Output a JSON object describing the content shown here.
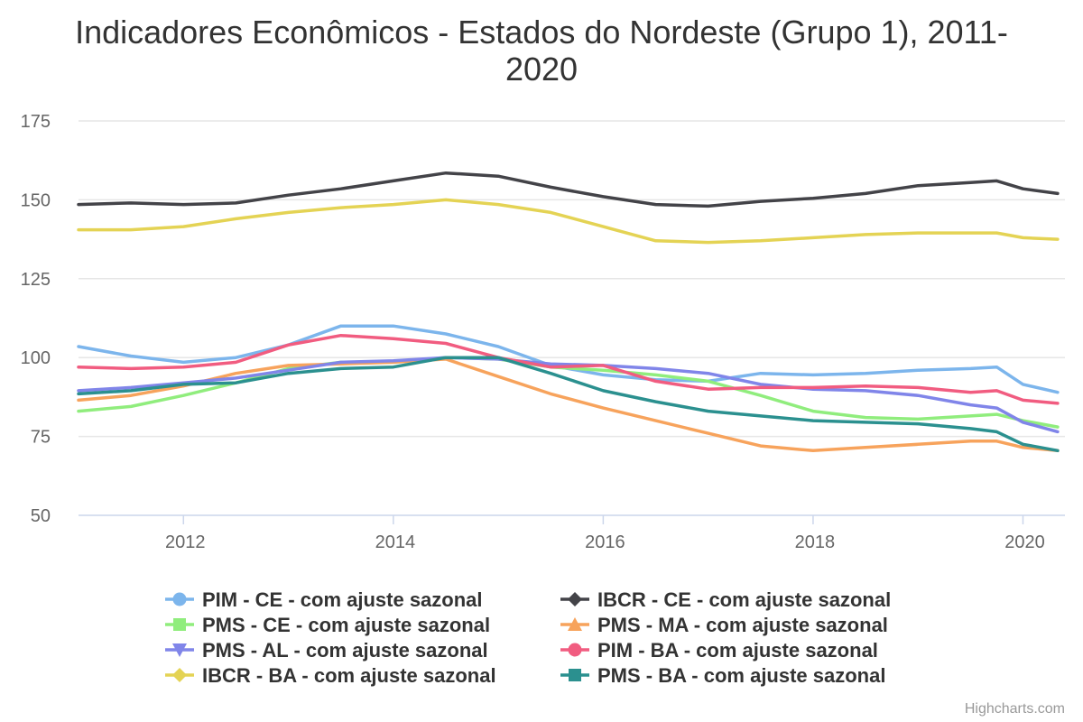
{
  "chart_data": {
    "type": "line",
    "title": "Indicadores Econômicos - Estados do Nordeste (Grupo 1), 2011-2020",
    "title_lines": [
      "Indicadores Econômicos - Estados do Nordeste (Grupo 1), 2011-",
      "2020"
    ],
    "xlabel": "",
    "ylabel": "",
    "x_ticks": [
      "2012",
      "2014",
      "2016",
      "2018",
      "2020"
    ],
    "x_tick_values": [
      2012,
      2014,
      2016,
      2018,
      2020
    ],
    "y_ticks": [
      "50",
      "75",
      "100",
      "125",
      "150",
      "175"
    ],
    "y_tick_values": [
      50,
      75,
      100,
      125,
      150,
      175
    ],
    "xlim": [
      2011,
      2020.4
    ],
    "ylim": [
      50,
      175
    ],
    "grid": "horizontal",
    "legend_position": "bottom",
    "credits": "Highcharts.com",
    "x": [
      2011,
      2011.5,
      2012,
      2012.5,
      2013,
      2013.5,
      2014,
      2014.5,
      2015,
      2015.5,
      2016,
      2016.5,
      2017,
      2017.5,
      2018,
      2018.5,
      2019,
      2019.5,
      2019.75,
      2020,
      2020.33
    ],
    "series": [
      {
        "name": "PIM - CE - com ajuste sazonal",
        "color": "#7cb5ec",
        "marker": "circle",
        "values": [
          103.5,
          100.5,
          98.5,
          100,
          104,
          110,
          110,
          107.5,
          103.5,
          97.5,
          94.5,
          93,
          92.5,
          95,
          94.5,
          95,
          96,
          96.5,
          97,
          91.5,
          89
        ]
      },
      {
        "name": "IBCR - CE - com ajuste sazonal",
        "color": "#434348",
        "marker": "diamond",
        "values": [
          148.5,
          149,
          148.5,
          149,
          151.5,
          153.5,
          156,
          158.5,
          157.5,
          154,
          151,
          148.5,
          148,
          149.5,
          150.5,
          152,
          154.5,
          155.5,
          156,
          153.5,
          152
        ]
      },
      {
        "name": "PMS - CE - com ajuste sazonal",
        "color": "#90ed7d",
        "marker": "square",
        "values": [
          83,
          84.5,
          88,
          92,
          96.5,
          98.5,
          98.5,
          100,
          99.5,
          97,
          96,
          94.5,
          92.5,
          88,
          83,
          81,
          80.5,
          81.5,
          82,
          80,
          78
        ]
      },
      {
        "name": "PMS - MA - com ajuste sazonal",
        "color": "#f7a35c",
        "marker": "triangle",
        "values": [
          86.5,
          88,
          91,
          95,
          97.5,
          98,
          98.5,
          99.5,
          94,
          88.5,
          84,
          80,
          76,
          72,
          70.5,
          71.5,
          72.5,
          73.5,
          73.5,
          71.5,
          70.5
        ]
      },
      {
        "name": "PMS - AL - com ajuste sazonal",
        "color": "#8085e9",
        "marker": "triangle-down",
        "values": [
          89.5,
          90.5,
          92,
          93.5,
          96,
          98.5,
          99,
          100,
          99.5,
          98,
          97.5,
          96.5,
          95,
          91.5,
          90,
          89.5,
          88,
          85,
          84,
          79.5,
          76.5
        ]
      },
      {
        "name": "PIM - BA - com ajuste sazonal",
        "color": "#f15c80",
        "marker": "circle",
        "values": [
          97,
          96.5,
          97,
          98.5,
          104,
          107,
          106,
          104.5,
          100,
          97,
          97.5,
          92.5,
          90,
          90.5,
          90.5,
          91,
          90.5,
          89,
          89.5,
          86.5,
          85.5
        ]
      },
      {
        "name": "IBCR - BA - com ajuste sazonal",
        "color": "#e4d354",
        "marker": "diamond",
        "values": [
          140.5,
          140.5,
          141.5,
          144,
          146,
          147.5,
          148.5,
          150,
          148.5,
          146,
          141.5,
          137,
          136.5,
          137,
          138,
          139,
          139.5,
          139.5,
          139.5,
          138,
          137.5
        ]
      },
      {
        "name": "PMS - BA - com ajuste sazonal",
        "color": "#2b908f",
        "marker": "square",
        "values": [
          88.5,
          89.5,
          91.5,
          92,
          95,
          96.5,
          97,
          100,
          100,
          95,
          89.5,
          86,
          83,
          81.5,
          80,
          79.5,
          79,
          77.5,
          76.5,
          72.5,
          70.5
        ]
      }
    ]
  }
}
